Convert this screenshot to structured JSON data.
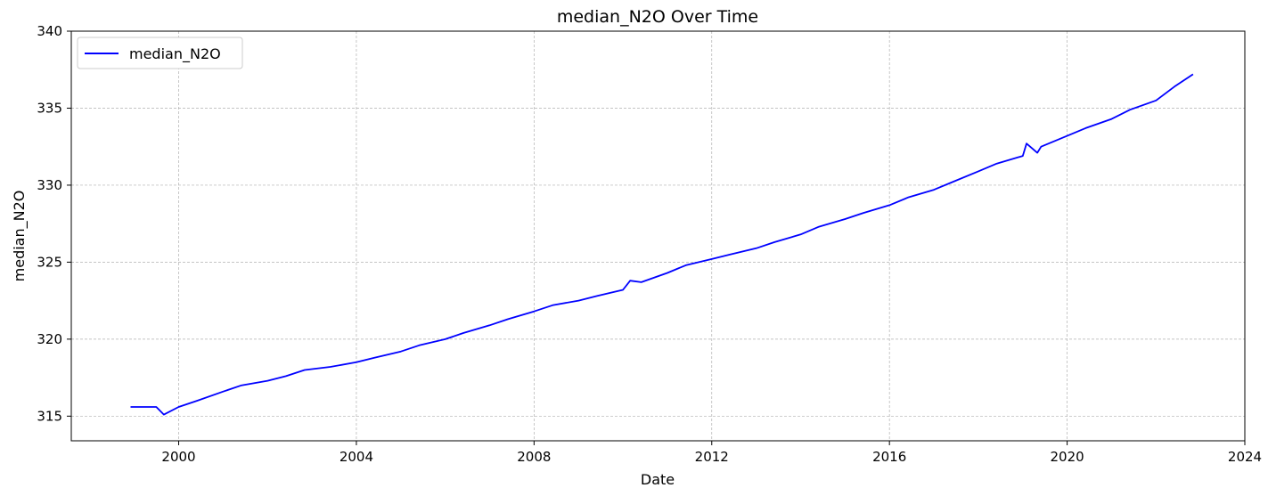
{
  "chart_data": {
    "type": "line",
    "title": "median_N2O Over Time",
    "xlabel": "Date",
    "ylabel": "median_N2O",
    "x_axis": {
      "range": [
        "1997-08-01",
        "2024-01-01"
      ],
      "ticks": [
        "2000-01-01",
        "2004-01-01",
        "2008-01-01",
        "2012-01-01",
        "2016-01-01",
        "2020-01-01",
        "2024-01-01"
      ],
      "tick_labels": [
        "2000",
        "2004",
        "2008",
        "2012",
        "2016",
        "2020",
        "2024"
      ]
    },
    "y_axis": {
      "range": [
        313.4,
        340
      ],
      "ticks": [
        315,
        320,
        325,
        330,
        335,
        340
      ],
      "tick_labels": [
        "315",
        "320",
        "325",
        "330",
        "335",
        "340"
      ]
    },
    "grid": true,
    "legend": {
      "position": "top-left",
      "entries": [
        "median_N2O"
      ]
    },
    "series": [
      {
        "name": "median_N2O",
        "color": "#0000ff",
        "x": [
          "1998-12-01",
          "1999-07-01",
          "1999-09-01",
          "2000-01-01",
          "2000-06-01",
          "2001-01-01",
          "2001-06-01",
          "2002-01-01",
          "2002-06-01",
          "2002-11-01",
          "2003-06-01",
          "2004-01-01",
          "2004-06-01",
          "2005-01-01",
          "2005-06-01",
          "2006-01-01",
          "2006-06-01",
          "2007-01-01",
          "2007-06-01",
          "2008-01-01",
          "2008-06-01",
          "2009-01-01",
          "2009-06-01",
          "2010-01-01",
          "2010-03-01",
          "2010-06-01",
          "2011-01-01",
          "2011-06-01",
          "2012-01-01",
          "2012-06-01",
          "2013-01-01",
          "2013-06-01",
          "2014-01-01",
          "2014-06-01",
          "2015-01-01",
          "2015-06-01",
          "2016-01-01",
          "2016-06-01",
          "2017-01-01",
          "2017-06-01",
          "2018-01-01",
          "2018-06-01",
          "2019-01-01",
          "2019-02-01",
          "2019-05-01",
          "2019-06-01",
          "2020-01-01",
          "2020-06-01",
          "2021-01-01",
          "2021-06-01",
          "2022-01-01",
          "2022-06-01",
          "2022-11-01"
        ],
        "values": [
          315.6,
          315.6,
          315.1,
          315.6,
          316.0,
          316.6,
          317.0,
          317.3,
          317.6,
          318.0,
          318.2,
          318.5,
          318.8,
          319.2,
          319.6,
          320.0,
          320.4,
          320.9,
          321.3,
          321.8,
          322.2,
          322.5,
          322.8,
          323.2,
          323.8,
          323.7,
          324.3,
          324.8,
          325.2,
          325.5,
          325.9,
          326.3,
          326.8,
          327.3,
          327.8,
          328.2,
          328.7,
          329.2,
          329.7,
          330.2,
          330.9,
          331.4,
          331.9,
          332.7,
          332.1,
          332.5,
          333.2,
          333.7,
          334.3,
          334.9,
          335.5,
          336.4,
          337.2
        ]
      }
    ]
  }
}
